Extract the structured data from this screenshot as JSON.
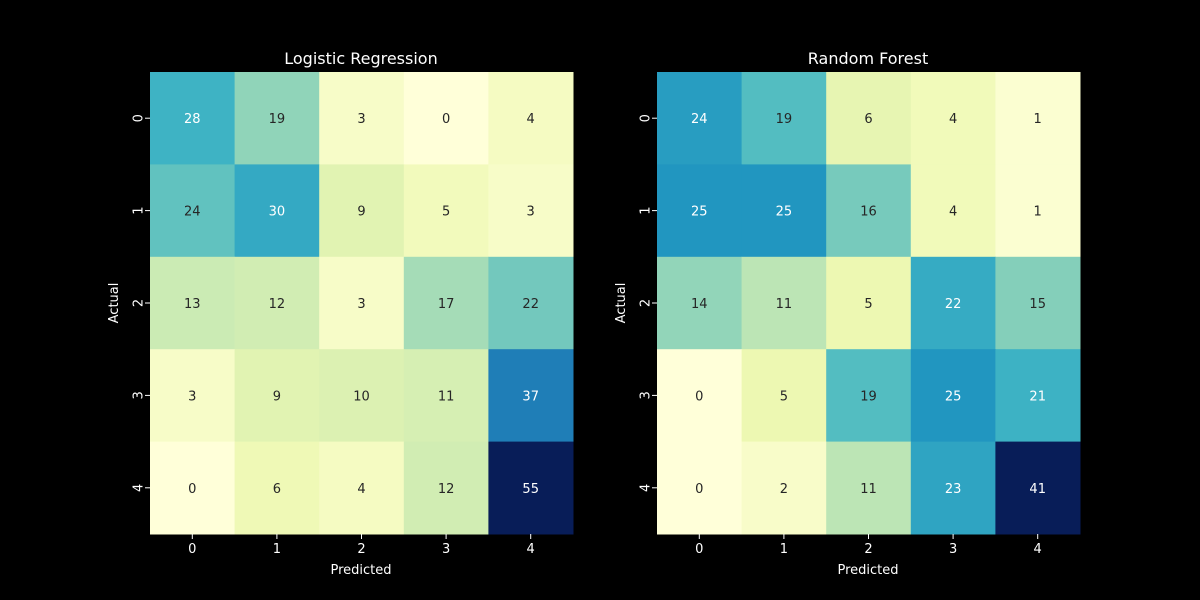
{
  "background": "#000000",
  "text_color": "#ffffff",
  "cell_text_dark": "#262626",
  "cell_text_light": "#ffffff",
  "colormap": "YlGnBu",
  "chart_data": [
    {
      "type": "heatmap",
      "title": "Logistic Regression",
      "xlabel": "Predicted",
      "ylabel": "Actual",
      "x_categories": [
        "0",
        "1",
        "2",
        "3",
        "4"
      ],
      "y_categories": [
        "0",
        "1",
        "2",
        "3",
        "4"
      ],
      "values": [
        [
          28,
          19,
          3,
          0,
          4
        ],
        [
          24,
          30,
          9,
          5,
          3
        ],
        [
          13,
          12,
          3,
          17,
          22
        ],
        [
          3,
          9,
          10,
          11,
          37
        ],
        [
          0,
          6,
          4,
          12,
          55
        ]
      ],
      "vmin": 0,
      "vmax": 55
    },
    {
      "type": "heatmap",
      "title": "Random Forest",
      "xlabel": "Predicted",
      "ylabel": "Actual",
      "x_categories": [
        "0",
        "1",
        "2",
        "3",
        "4"
      ],
      "y_categories": [
        "0",
        "1",
        "2",
        "3",
        "4"
      ],
      "values": [
        [
          24,
          19,
          6,
          4,
          1
        ],
        [
          25,
          25,
          16,
          4,
          1
        ],
        [
          14,
          11,
          5,
          22,
          15
        ],
        [
          0,
          5,
          19,
          25,
          21
        ],
        [
          0,
          2,
          11,
          23,
          41
        ]
      ],
      "vmin": 0,
      "vmax": 41
    }
  ]
}
